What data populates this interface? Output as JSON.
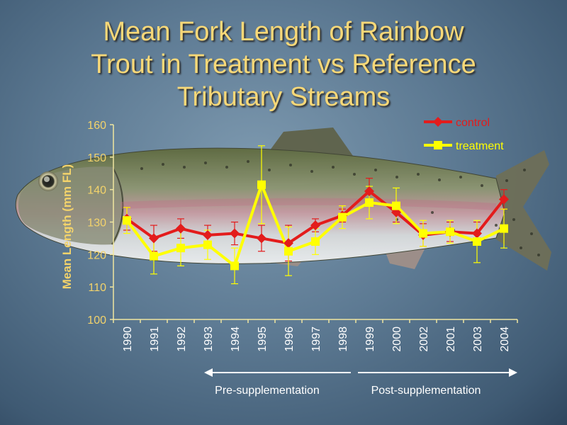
{
  "chart_data": {
    "type": "line",
    "title": [
      "Mean Fork Length of Rainbow",
      "Trout in Treatment vs Reference",
      "Tributary Streams"
    ],
    "ylabel": "Mean Length (mm FL)",
    "xlabel": "",
    "ylim": [
      100,
      160
    ],
    "yticks": [
      100,
      110,
      120,
      130,
      140,
      150,
      160
    ],
    "categories": [
      "1990",
      "1991",
      "1992",
      "1993",
      "1994",
      "1995",
      "1996",
      "1997",
      "1998",
      "1999",
      "2000",
      "2002",
      "2001",
      "2003",
      "2004"
    ],
    "grid": false,
    "legend_position": "top-right",
    "series": [
      {
        "name": "control",
        "color": "#e31c1c",
        "marker": "diamond",
        "values": [
          131,
          125,
          128,
          126,
          126.5,
          125,
          123.5,
          129,
          132,
          139.5,
          133,
          126,
          127,
          126.5,
          137
        ],
        "error": [
          3.5,
          4,
          3,
          3,
          3.5,
          4,
          5.5,
          2,
          2,
          4,
          3,
          3.5,
          3,
          3.5,
          3
        ]
      },
      {
        "name": "treatment",
        "color": "#ffff00",
        "marker": "square",
        "values": [
          130.5,
          119.5,
          122,
          123,
          116.5,
          141.5,
          121,
          124,
          131.5,
          136,
          135,
          126.5,
          127,
          124,
          128
        ],
        "error": [
          4,
          5.5,
          5.5,
          4.5,
          5.5,
          12,
          7.5,
          4,
          3.5,
          5,
          5.5,
          4,
          3.5,
          6.5,
          6
        ]
      }
    ],
    "annotations": [
      {
        "text": "Pre-supplementation",
        "from": "1990",
        "to": "1998"
      },
      {
        "text": "Post-supplementation",
        "from": "1999",
        "to": "2004"
      }
    ]
  }
}
